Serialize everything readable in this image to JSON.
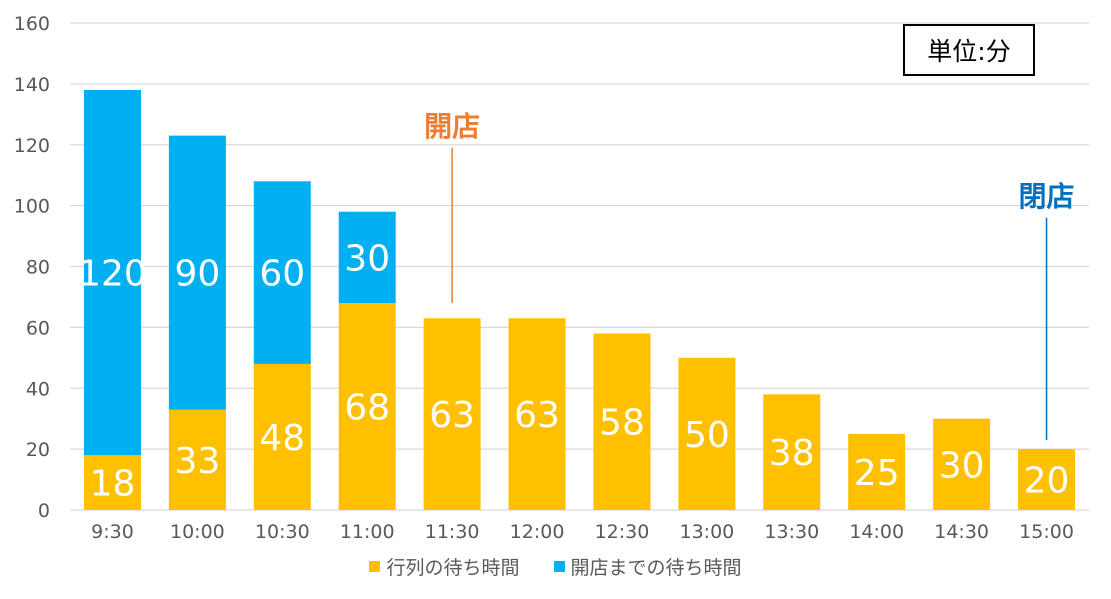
{
  "chart_data": {
    "type": "bar",
    "stacked": true,
    "categories": [
      "9:30",
      "10:00",
      "10:30",
      "11:00",
      "11:30",
      "12:00",
      "12:30",
      "13:00",
      "13:30",
      "14:00",
      "14:30",
      "15:00"
    ],
    "series": [
      {
        "name": "行列の待ち時間",
        "color": "#FFC000",
        "values": [
          18,
          33,
          48,
          68,
          63,
          63,
          58,
          50,
          38,
          25,
          30,
          20
        ]
      },
      {
        "name": "開店までの待ち時間",
        "color": "#00B0F0",
        "values": [
          120,
          90,
          60,
          30,
          null,
          null,
          null,
          null,
          null,
          null,
          null,
          null
        ]
      }
    ],
    "ylim": [
      0,
      160
    ],
    "yticks": [
      0,
      20,
      40,
      60,
      80,
      100,
      120,
      140,
      160
    ],
    "grid": true,
    "legend_position": "bottom",
    "unit_label": "単位:分",
    "annotations": [
      {
        "text": "開店",
        "category": "11:30",
        "color": "#ED7D31",
        "line_from": 68,
        "line_to": 119
      },
      {
        "text": "閉店",
        "category": "15:00",
        "color": "#0070C0",
        "line_from": 23,
        "line_to": 96
      }
    ]
  }
}
